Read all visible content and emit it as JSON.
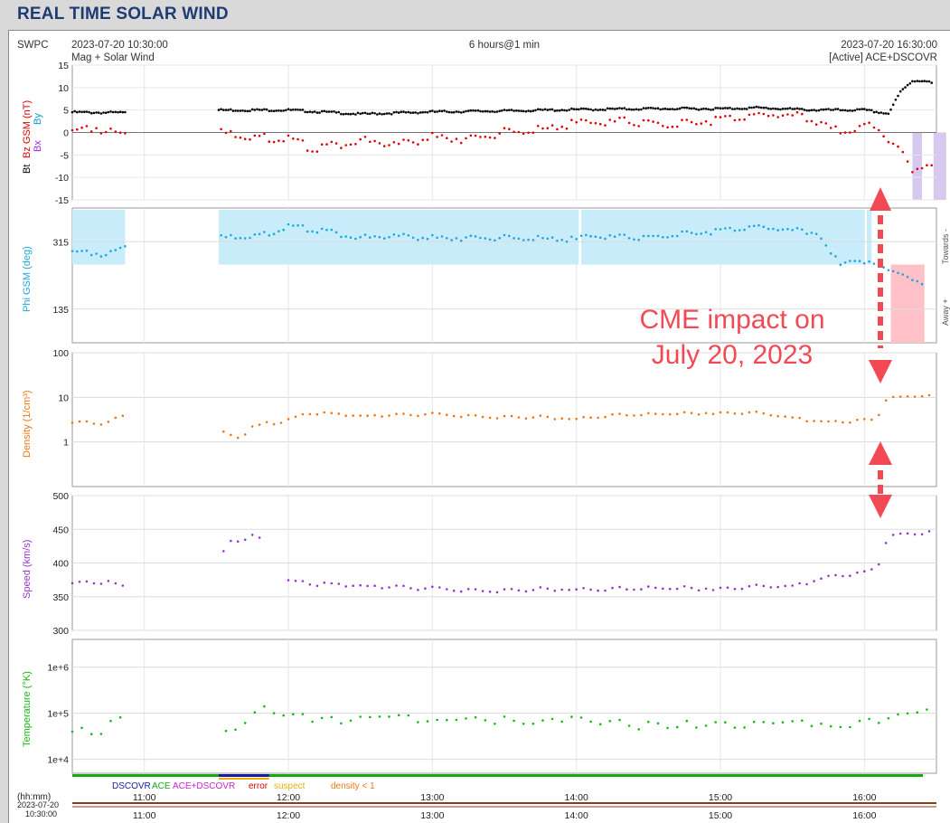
{
  "app_title": "REAL TIME SOLAR WIND",
  "header": {
    "source": "SWPC",
    "start_time": "2023-07-20 10:30:00",
    "subtitle": "Mag + Solar Wind",
    "span": "6 hours@1 min",
    "end_time": "2023-07-20 16:30:00",
    "active": "[Active] ACE+DSCOVR"
  },
  "colors": {
    "bt": "#000000",
    "bz": "#e00000",
    "bx": "#a020f0",
    "by": "#00a0d0",
    "phi": "#1aa7dc",
    "phi_band": "#c8ecfa",
    "density": "#ee7711",
    "speed": "#9933cc",
    "temperature": "#11bb11",
    "annotation": "#f24a55",
    "cme_shade_blue": "#d7c8f0",
    "cme_shade_red": "#ffc0c8"
  },
  "annotation": {
    "line1": "CME impact on",
    "line2": "July 20, 2023"
  },
  "legend": {
    "dscovr": "DSCOVR",
    "ace": "ACE",
    "ace_dscovr": "ACE+DSCOVR",
    "error": "error",
    "suspect": "suspect",
    "density_lt1": "density < 1"
  },
  "time_axis": {
    "hhmm_label": "(hh:mm)",
    "start_date": "2023-07-20",
    "start_clock": "10:30:00",
    "ticks": [
      "11:00",
      "12:00",
      "13:00",
      "14:00",
      "15:00",
      "16:00"
    ]
  },
  "chart_data": [
    {
      "type": "scatter",
      "panel": "mag",
      "ylabel_parts": [
        "Bt",
        "Bz GSM (nT)",
        "Bx",
        "By"
      ],
      "ylim": [
        -15,
        15
      ],
      "yticks": [
        "15",
        "10",
        "5",
        "0",
        "-5",
        "-10",
        "-15"
      ],
      "x_range": [
        "10:30",
        "16:30"
      ],
      "series": [
        {
          "name": "Bt",
          "points": [
            [
              "10:30",
              4.5
            ],
            [
              "10:50",
              4.4
            ],
            [
              "11:00",
              4.2
            ],
            [
              "11:31",
              5
            ],
            [
              "12:00",
              5
            ],
            [
              "12:30",
              4.1
            ],
            [
              "13:00",
              4.6
            ],
            [
              "13:30",
              4.8
            ],
            [
              "14:00",
              5.1
            ],
            [
              "14:30",
              5.3
            ],
            [
              "15:00",
              5.3
            ],
            [
              "15:15",
              5.5
            ],
            [
              "15:40",
              5
            ],
            [
              "16:00",
              5
            ],
            [
              "16:10",
              4.2
            ],
            [
              "16:15",
              9
            ],
            [
              "16:20",
              11.5
            ],
            [
              "16:25",
              11.6
            ],
            [
              "16:28",
              11
            ]
          ]
        },
        {
          "name": "Bz GSM",
          "points": [
            [
              "10:30",
              0.5
            ],
            [
              "10:40",
              1.0
            ],
            [
              "10:50",
              -0.8
            ],
            [
              "11:00",
              -1.0
            ],
            [
              "11:31",
              0
            ],
            [
              "11:45",
              -0.8
            ],
            [
              "12:00",
              -1.5
            ],
            [
              "12:10",
              -3.5
            ],
            [
              "12:30",
              -1.8
            ],
            [
              "12:45",
              -2.8
            ],
            [
              "13:00",
              -1
            ],
            [
              "13:15",
              -1.5
            ],
            [
              "13:30",
              0
            ],
            [
              "13:45",
              0.5
            ],
            [
              "14:00",
              2
            ],
            [
              "14:20",
              2.5
            ],
            [
              "14:40",
              1.5
            ],
            [
              "15:00",
              3
            ],
            [
              "15:20",
              4
            ],
            [
              "15:35",
              3.5
            ],
            [
              "15:50",
              0
            ],
            [
              "16:00",
              1
            ],
            [
              "16:05",
              2
            ],
            [
              "16:10",
              -2
            ],
            [
              "16:15",
              -4
            ],
            [
              "16:20",
              -8.5
            ],
            [
              "16:25",
              -7
            ],
            [
              "16:28",
              -7.5
            ]
          ]
        }
      ]
    },
    {
      "type": "scatter",
      "panel": "phi",
      "ylabel": "Phi GSM (deg)",
      "ylim": [
        45,
        405
      ],
      "yticks": [
        "315",
        "135"
      ],
      "side_labels": [
        "Towards -",
        "Away +"
      ],
      "series": [
        {
          "name": "Phi GSM",
          "points": [
            [
              "10:30",
              290
            ],
            [
              "10:45",
              280
            ],
            [
              "10:55",
              305
            ],
            [
              "11:00",
              320
            ],
            [
              "11:31",
              325
            ],
            [
              "11:50",
              335
            ],
            [
              "12:00",
              355
            ],
            [
              "12:15",
              345
            ],
            [
              "12:30",
              325
            ],
            [
              "12:45",
              330
            ],
            [
              "13:00",
              325
            ],
            [
              "13:30",
              325
            ],
            [
              "14:00",
              320
            ],
            [
              "14:05",
              330
            ],
            [
              "14:30",
              325
            ],
            [
              "15:00",
              345
            ],
            [
              "15:15",
              355
            ],
            [
              "15:30",
              345
            ],
            [
              "15:40",
              340
            ],
            [
              "15:45",
              290
            ],
            [
              "15:50",
              255
            ],
            [
              "15:55",
              270
            ],
            [
              "16:00",
              250
            ],
            [
              "16:05",
              265
            ],
            [
              "16:10",
              240
            ],
            [
              "16:15",
              225
            ],
            [
              "16:25",
              205
            ]
          ]
        }
      ]
    },
    {
      "type": "scatter",
      "panel": "density",
      "ylabel": "Density (1/cm³)",
      "yscale": "log",
      "ylim": [
        0.1,
        100
      ],
      "yticks": [
        "100",
        "10",
        "1"
      ],
      "series": [
        {
          "name": "Density",
          "points": [
            [
              "10:30",
              2.7
            ],
            [
              "10:45",
              2.7
            ],
            [
              "10:50",
              3.7
            ],
            [
              "11:00",
              3.6
            ],
            [
              "11:31",
              2.2
            ],
            [
              "11:35",
              1.2
            ],
            [
              "11:40",
              1.5
            ],
            [
              "11:50",
              2.6
            ],
            [
              "12:00",
              3
            ],
            [
              "12:10",
              4.5
            ],
            [
              "12:30",
              3.8
            ],
            [
              "12:45",
              4
            ],
            [
              "13:00",
              4.2
            ],
            [
              "13:30",
              3.5
            ],
            [
              "13:45",
              3.7
            ],
            [
              "14:00",
              3.2
            ],
            [
              "14:15",
              4
            ],
            [
              "14:30",
              4.2
            ],
            [
              "15:00",
              4.5
            ],
            [
              "15:15",
              4.5
            ],
            [
              "15:30",
              3.5
            ],
            [
              "15:45",
              2.6
            ],
            [
              "16:00",
              3
            ],
            [
              "16:05",
              2.8
            ],
            [
              "16:10",
              10
            ],
            [
              "16:20",
              10.5
            ],
            [
              "16:28",
              11
            ]
          ]
        }
      ]
    },
    {
      "type": "scatter",
      "panel": "speed",
      "ylabel": "Speed (km/s)",
      "ylim": [
        300,
        500
      ],
      "yticks": [
        "500",
        "450",
        "400",
        "350",
        "300"
      ],
      "series": [
        {
          "name": "Speed",
          "points": [
            [
              "10:30",
              370
            ],
            [
              "10:45",
              372
            ],
            [
              "10:50",
              365
            ],
            [
              "11:00",
              363
            ],
            [
              "11:31",
              405
            ],
            [
              "11:35",
              430
            ],
            [
              "11:45",
              440
            ],
            [
              "11:50",
              435
            ],
            [
              "12:00",
              372
            ],
            [
              "12:15",
              368
            ],
            [
              "12:30",
              366
            ],
            [
              "13:00",
              362
            ],
            [
              "13:15",
              360
            ],
            [
              "13:30",
              358
            ],
            [
              "13:45",
              362
            ],
            [
              "14:00",
              360
            ],
            [
              "14:30",
              363
            ],
            [
              "15:00",
              362
            ],
            [
              "15:15",
              365
            ],
            [
              "15:30",
              366
            ],
            [
              "15:45",
              378
            ],
            [
              "16:00",
              385
            ],
            [
              "16:05",
              390
            ],
            [
              "16:10",
              440
            ],
            [
              "16:20",
              444
            ],
            [
              "16:28",
              445
            ]
          ]
        }
      ]
    },
    {
      "type": "scatter",
      "panel": "temperature",
      "ylabel": "Temperature (°K)",
      "yscale": "log",
      "ylim": [
        5000,
        4000000
      ],
      "yticks": [
        "1e+6",
        "1e+5",
        "1e+4"
      ],
      "series": [
        {
          "name": "Temperature",
          "points": [
            [
              "10:30",
              40000
            ],
            [
              "10:45",
              50000
            ],
            [
              "10:50",
              70000
            ],
            [
              "11:00",
              85000
            ],
            [
              "11:31",
              30000
            ],
            [
              "11:40",
              60000
            ],
            [
              "11:50",
              130000
            ],
            [
              "12:00",
              90000
            ],
            [
              "12:15",
              70000
            ],
            [
              "12:30",
              80000
            ],
            [
              "12:45",
              90000
            ],
            [
              "13:00",
              70000
            ],
            [
              "13:15",
              75000
            ],
            [
              "13:30",
              70000
            ],
            [
              "13:45",
              65000
            ],
            [
              "14:00",
              70000
            ],
            [
              "14:15",
              60000
            ],
            [
              "14:30",
              55000
            ],
            [
              "15:00",
              55000
            ],
            [
              "15:15",
              60000
            ],
            [
              "15:30",
              65000
            ],
            [
              "15:45",
              50000
            ],
            [
              "16:00",
              60000
            ],
            [
              "16:10",
              80000
            ],
            [
              "16:20",
              100000
            ],
            [
              "16:28",
              130000
            ]
          ]
        }
      ]
    }
  ]
}
